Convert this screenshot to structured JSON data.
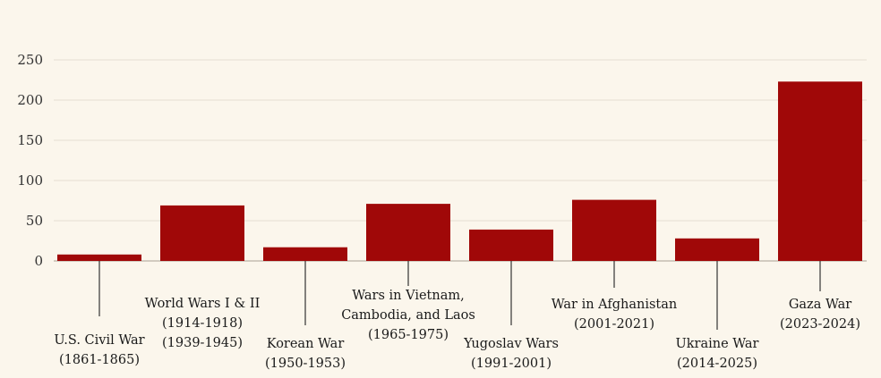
{
  "chart_data": {
    "type": "bar",
    "title": "",
    "xlabel": "",
    "ylabel": "",
    "ylim": [
      0,
      250
    ],
    "yticks": [
      0,
      50,
      100,
      150,
      200,
      250
    ],
    "grid": true,
    "bar_color": "#a00808",
    "gridline_color": "#e6dfd2",
    "background_color": "#fbf6ec",
    "categories": [
      [
        "U.S. Civil War",
        "(1861-1865)"
      ],
      [
        "World Wars I & II",
        "(1914-1918)",
        "(1939-1945)"
      ],
      [
        "Korean War",
        "(1950-1953)"
      ],
      [
        "Wars in Vietnam,",
        "Cambodia, and Laos",
        "(1965-1975)"
      ],
      [
        "Yugoslav Wars",
        "(1991-2001)"
      ],
      [
        "War in Afghanistan",
        "(2001-2021)"
      ],
      [
        "Ukraine War",
        "(2014-2025)"
      ],
      [
        "Gaza War",
        "(2023-2024)"
      ]
    ],
    "values": [
      8,
      69,
      17,
      71,
      39,
      76,
      28,
      223
    ]
  }
}
